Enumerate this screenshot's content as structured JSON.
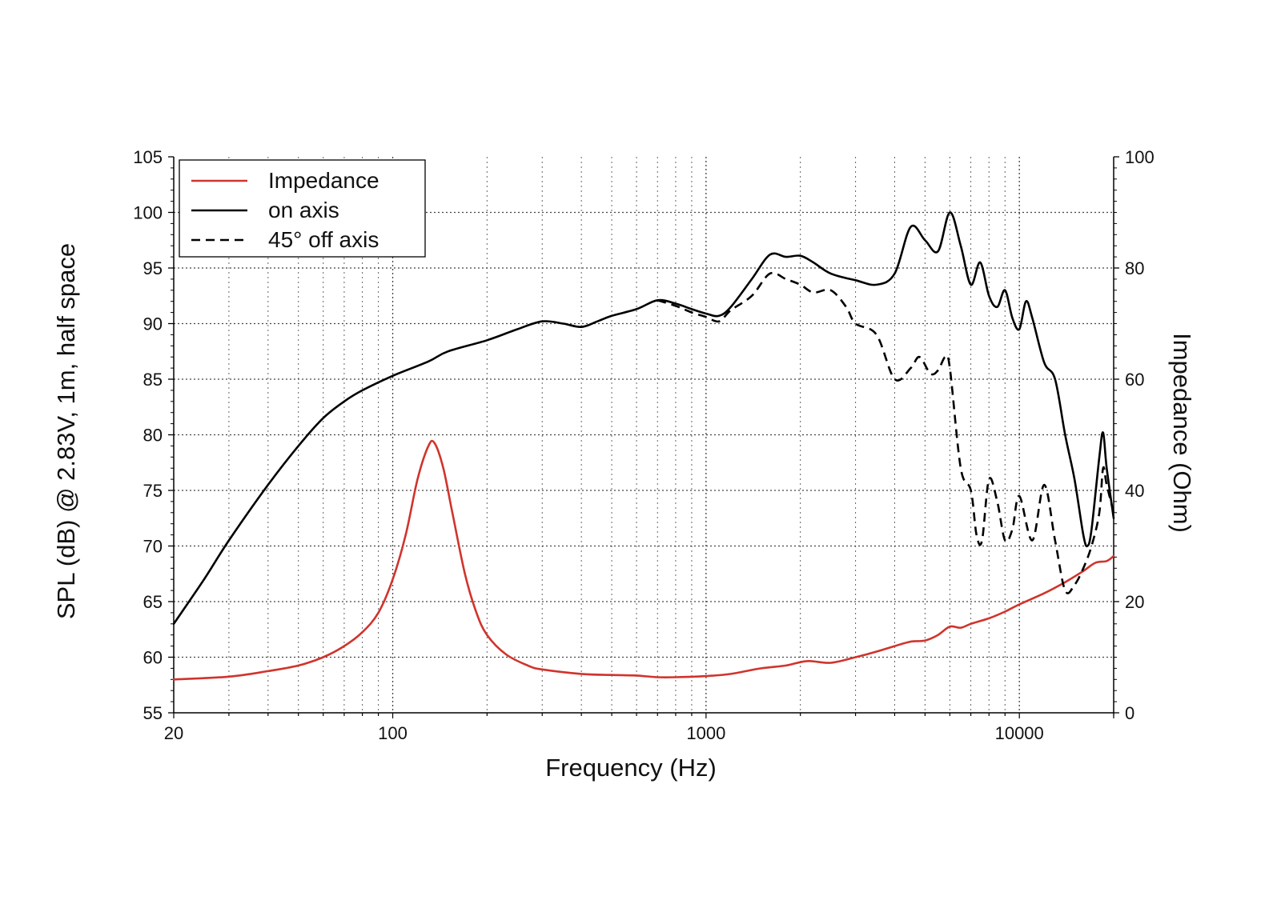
{
  "chart_data": {
    "type": "line",
    "xlabel": "Frequency (Hz)",
    "ylabel": "SPL (dB) @ 2.83V, 1m, half space",
    "y2label": "Impedance (Ohm)",
    "x_scale": "log",
    "xlim": [
      20,
      20000
    ],
    "ylim": [
      55,
      105
    ],
    "y2lim": [
      0,
      100
    ],
    "x_ticks": [
      20,
      100,
      1000,
      10000
    ],
    "x_tick_labels": [
      "20",
      "100",
      "1000",
      "10000"
    ],
    "y_ticks": [
      55,
      60,
      65,
      70,
      75,
      80,
      85,
      90,
      95,
      100,
      105
    ],
    "y2_ticks": [
      0,
      20,
      40,
      60,
      80,
      100
    ],
    "grid": true,
    "legend": {
      "position": "top-left"
    },
    "series": [
      {
        "name": "Impedance",
        "axis": "right",
        "color": "#d0342c",
        "style": "solid",
        "points": [
          [
            20,
            6
          ],
          [
            30,
            6.5
          ],
          [
            40,
            7.5
          ],
          [
            50,
            8.5
          ],
          [
            60,
            10
          ],
          [
            70,
            12
          ],
          [
            80,
            14.5
          ],
          [
            90,
            18
          ],
          [
            100,
            24
          ],
          [
            110,
            32
          ],
          [
            120,
            42
          ],
          [
            130,
            48
          ],
          [
            136,
            48.5
          ],
          [
            145,
            44
          ],
          [
            155,
            36
          ],
          [
            170,
            25
          ],
          [
            185,
            18
          ],
          [
            200,
            14
          ],
          [
            230,
            10.5
          ],
          [
            270,
            8.5
          ],
          [
            300,
            7.8
          ],
          [
            400,
            7
          ],
          [
            500,
            6.8
          ],
          [
            600,
            6.7
          ],
          [
            700,
            6.4
          ],
          [
            800,
            6.4
          ],
          [
            1000,
            6.6
          ],
          [
            1200,
            7
          ],
          [
            1500,
            8
          ],
          [
            1800,
            8.5
          ],
          [
            2100,
            9.3
          ],
          [
            2500,
            9
          ],
          [
            3000,
            10
          ],
          [
            3500,
            11
          ],
          [
            4000,
            12
          ],
          [
            4500,
            12.8
          ],
          [
            5000,
            13
          ],
          [
            5500,
            14
          ],
          [
            6000,
            15.5
          ],
          [
            6500,
            15.3
          ],
          [
            7000,
            16
          ],
          [
            8000,
            17
          ],
          [
            9000,
            18.2
          ],
          [
            10000,
            19.5
          ],
          [
            12000,
            21.5
          ],
          [
            14000,
            23.5
          ],
          [
            16000,
            25.5
          ],
          [
            17500,
            27
          ],
          [
            19000,
            27.3
          ],
          [
            20000,
            28.2
          ]
        ]
      },
      {
        "name": "on axis",
        "axis": "left",
        "color": "#000000",
        "style": "solid",
        "points": [
          [
            20,
            63
          ],
          [
            25,
            67
          ],
          [
            30,
            70.5
          ],
          [
            40,
            75.5
          ],
          [
            50,
            79
          ],
          [
            60,
            81.5
          ],
          [
            70,
            83
          ],
          [
            80,
            84
          ],
          [
            100,
            85.3
          ],
          [
            130,
            86.6
          ],
          [
            150,
            87.5
          ],
          [
            200,
            88.5
          ],
          [
            250,
            89.5
          ],
          [
            300,
            90.2
          ],
          [
            350,
            90
          ],
          [
            400,
            89.7
          ],
          [
            450,
            90.2
          ],
          [
            500,
            90.7
          ],
          [
            600,
            91.3
          ],
          [
            700,
            92.1
          ],
          [
            800,
            91.8
          ],
          [
            900,
            91.3
          ],
          [
            1000,
            90.9
          ],
          [
            1100,
            90.7
          ],
          [
            1200,
            91.5
          ],
          [
            1400,
            94
          ],
          [
            1600,
            96.2
          ],
          [
            1800,
            96
          ],
          [
            2000,
            96.1
          ],
          [
            2200,
            95.5
          ],
          [
            2500,
            94.5
          ],
          [
            3000,
            93.9
          ],
          [
            3500,
            93.5
          ],
          [
            4000,
            94.5
          ],
          [
            4500,
            98.7
          ],
          [
            5000,
            97.5
          ],
          [
            5500,
            96.5
          ],
          [
            6000,
            100
          ],
          [
            6500,
            97
          ],
          [
            7000,
            93.5
          ],
          [
            7500,
            95.5
          ],
          [
            8000,
            92.5
          ],
          [
            8500,
            91.5
          ],
          [
            9000,
            93
          ],
          [
            9500,
            90.5
          ],
          [
            10000,
            89.5
          ],
          [
            10500,
            92
          ],
          [
            11000,
            90.5
          ],
          [
            12000,
            86.5
          ],
          [
            13000,
            85
          ],
          [
            14000,
            80
          ],
          [
            15000,
            76
          ],
          [
            16000,
            71
          ],
          [
            16500,
            70
          ],
          [
            17000,
            71.5
          ],
          [
            18000,
            78
          ],
          [
            18500,
            80.2
          ],
          [
            19000,
            77
          ],
          [
            20000,
            72.5
          ]
        ]
      },
      {
        "name": "45° off axis",
        "axis": "left",
        "color": "#000000",
        "style": "dashed",
        "points": [
          [
            700,
            92.1
          ],
          [
            800,
            91.6
          ],
          [
            900,
            91
          ],
          [
            1000,
            90.6
          ],
          [
            1100,
            90.2
          ],
          [
            1200,
            91.2
          ],
          [
            1400,
            92.5
          ],
          [
            1600,
            94.5
          ],
          [
            1800,
            94
          ],
          [
            2000,
            93.5
          ],
          [
            2200,
            92.8
          ],
          [
            2500,
            93
          ],
          [
            2800,
            91.5
          ],
          [
            3000,
            90
          ],
          [
            3500,
            89
          ],
          [
            4000,
            85
          ],
          [
            4500,
            86
          ],
          [
            4800,
            87
          ],
          [
            5200,
            85.5
          ],
          [
            5500,
            85.8
          ],
          [
            5800,
            87
          ],
          [
            6000,
            86
          ],
          [
            6500,
            77
          ],
          [
            7000,
            75
          ],
          [
            7300,
            71
          ],
          [
            7600,
            70.5
          ],
          [
            8000,
            76
          ],
          [
            8500,
            74
          ],
          [
            9000,
            70.5
          ],
          [
            9500,
            71.5
          ],
          [
            10000,
            74.5
          ],
          [
            11000,
            70.5
          ],
          [
            12000,
            75.5
          ],
          [
            13000,
            70.5
          ],
          [
            14000,
            66
          ],
          [
            15000,
            66.5
          ],
          [
            16000,
            68
          ],
          [
            17000,
            70
          ],
          [
            18000,
            73
          ],
          [
            18500,
            77
          ],
          [
            19000,
            75.5
          ],
          [
            20000,
            73
          ]
        ]
      }
    ]
  }
}
